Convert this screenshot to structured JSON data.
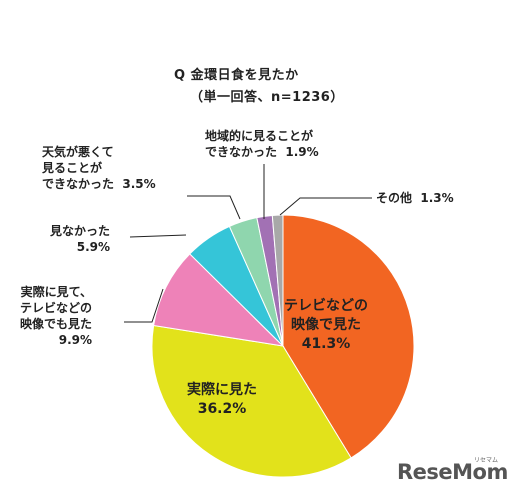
{
  "chart_data": {
    "type": "pie",
    "title": "Q 金環日食を見たか",
    "subtitle": "（単一回答、n=1236）",
    "unit": "%",
    "slices": [
      {
        "key": "tv",
        "label_lines": [
          "テレビなどの",
          "映像で見た"
        ],
        "value": 41.3,
        "value_label": "41.3%",
        "color": "#f26522"
      },
      {
        "key": "real",
        "label_lines": [
          "実際に見た"
        ],
        "value": 36.2,
        "value_label": "36.2%",
        "color": "#e2e21b"
      },
      {
        "key": "both",
        "label_lines": [
          "実際に見て、",
          "テレビなどの",
          "映像でも見た"
        ],
        "value": 9.9,
        "value_label": "9.9%",
        "color": "#ee82b8"
      },
      {
        "key": "not",
        "label_lines": [
          "見なかった"
        ],
        "value": 5.9,
        "value_label": "5.9%",
        "color": "#35c5d8"
      },
      {
        "key": "weather",
        "label_lines": [
          "天気が悪くて",
          "見ることが",
          "できなかった"
        ],
        "value": 3.5,
        "value_label": "3.5%",
        "color": "#8fd6ae"
      },
      {
        "key": "region",
        "label_lines": [
          "地域的に見ることが",
          "できなかった"
        ],
        "value": 1.9,
        "value_label": "1.9%",
        "color": "#a271b4"
      },
      {
        "key": "other",
        "label_lines": [
          "その他"
        ],
        "value": 1.3,
        "value_label": "1.3%",
        "color": "#a8a8a8"
      }
    ]
  },
  "watermark": {
    "text": "ReseMom",
    "small": "リセマム"
  }
}
